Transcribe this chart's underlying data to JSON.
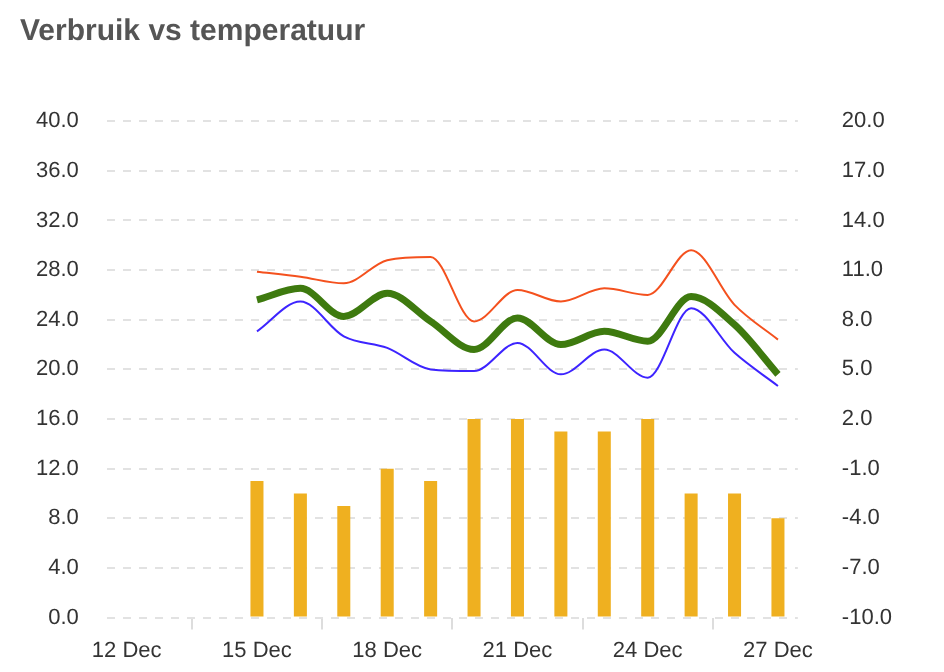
{
  "chart_data": {
    "type": "bar",
    "title": "Verbruik vs temperatuur",
    "x": [
      "--12-15",
      "--12-16",
      "--12-17",
      "--12-18",
      "--12-19",
      "--12-20",
      "--12-21",
      "--12-22",
      "--12-23",
      "--12-24",
      "--12-25",
      "--12-26",
      "--12-27"
    ],
    "series": [
      {
        "color": "#efb020",
        "values": [
          11,
          10,
          9,
          12,
          11,
          16,
          16,
          15,
          15,
          16,
          10,
          10,
          8
        ]
      },
      {
        "type": "line",
        "axis": "y2",
        "color": "#f4511e",
        "values": [
          10.9,
          10.6,
          10.2,
          11.6,
          11.8,
          7.9,
          9.8,
          9.1,
          9.9,
          9.5,
          12.2,
          8.9,
          6.8
        ]
      },
      {
        "type": "line",
        "axis": "y2",
        "color": "#3e7a0f",
        "values": [
          9.2,
          9.9,
          8.2,
          9.6,
          7.9,
          6.2,
          8.1,
          6.5,
          7.3,
          6.7,
          9.4,
          7.7,
          4.7
        ]
      },
      {
        "type": "line",
        "axis": "y2",
        "color": "#3d24ff",
        "values": [
          7.3,
          9.1,
          7.0,
          6.3,
          5.0,
          4.9,
          6.6,
          4.7,
          6.2,
          4.5,
          8.7,
          6.0,
          4.0
        ]
      }
    ],
    "xlim": [
      "--12-11T13:00",
      "--12-27T11:00"
    ],
    "xticks": [
      {
        "value": "--12-12",
        "label": "12 Dec"
      },
      {
        "value": "--12-15",
        "label": "15 Dec"
      },
      {
        "value": "--12-18",
        "label": "18 Dec"
      },
      {
        "value": "--12-21",
        "label": "21 Dec"
      },
      {
        "value": "--12-24",
        "label": "24 Dec"
      },
      {
        "value": "--12-27",
        "label": "27 Dec"
      }
    ],
    "ylim": [
      0,
      40
    ],
    "yticks": [
      {
        "value": 0,
        "label": "0.0"
      },
      {
        "value": 4,
        "label": "4.0"
      },
      {
        "value": 8,
        "label": "8.0"
      },
      {
        "value": 12,
        "label": "12.0"
      },
      {
        "value": 16,
        "label": "16.0"
      },
      {
        "value": 20,
        "label": "20.0"
      },
      {
        "value": 24,
        "label": "24.0"
      },
      {
        "value": 28,
        "label": "28.0"
      },
      {
        "value": 32,
        "label": "32.0"
      },
      {
        "value": 36,
        "label": "36.0"
      },
      {
        "value": 40,
        "label": "40.0"
      }
    ],
    "y2lim": [
      -10,
      20
    ],
    "y2ticks": [
      {
        "value": -10,
        "label": "-10.0"
      },
      {
        "value": -7,
        "label": "-7.0"
      },
      {
        "value": -4,
        "label": "-4.0"
      },
      {
        "value": -1,
        "label": "-1.0"
      },
      {
        "value": 2,
        "label": "2.0"
      },
      {
        "value": 5,
        "label": "5.0"
      },
      {
        "value": 8,
        "label": "8.0"
      },
      {
        "value": 11,
        "label": "11.0"
      },
      {
        "value": 14,
        "label": "14.0"
      },
      {
        "value": 17,
        "label": "17.0"
      },
      {
        "value": 20,
        "label": "20.0"
      }
    ],
    "grid": "y",
    "legend": false,
    "marker": "none",
    "line_style": "solid"
  }
}
